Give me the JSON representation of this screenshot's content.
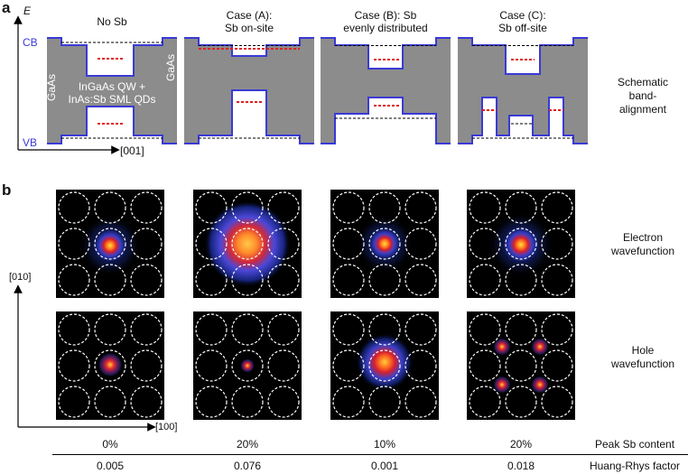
{
  "panel_a": {
    "letter": "a",
    "axis_energy": "E",
    "axis_direction": "[001]",
    "cb": "CB",
    "vb": "VB",
    "gaas_left": "GaAs",
    "gaas_right": "GaAs",
    "qw_label_line1": "InGaAs QW +",
    "qw_label_line2": "InAs:Sb SML QDs",
    "cases": [
      {
        "line1": "No Sb",
        "line2": ""
      },
      {
        "line1": "Case (A):",
        "line2": "Sb on-site"
      },
      {
        "line1": "Case (B): Sb",
        "line2": "evenly distributed"
      },
      {
        "line1": "Case (C):",
        "line2": "Sb off-site"
      }
    ],
    "row_label_line1": "Schematic",
    "row_label_line2": "band-",
    "row_label_line3": "alignment",
    "colors": {
      "band": "#3a3ad6",
      "fill": "#8c8c8c",
      "level_red": "#e02020"
    }
  },
  "panel_b": {
    "letter": "b",
    "axis_y": "[010]",
    "axis_x": "[100]",
    "electron_label_line1": "Electron",
    "electron_label_line2": "wavefunction",
    "hole_label_line1": "Hole",
    "hole_label_line2": "wavefunction"
  },
  "table": {
    "peak_sb_label": "Peak Sb content",
    "huang_rhys_label": "Huang-Rhys factor",
    "peak_sb": [
      "0%",
      "20%",
      "10%",
      "20%"
    ],
    "huang_rhys": [
      "0.005",
      "0.076",
      "0.001",
      "0.018"
    ]
  }
}
